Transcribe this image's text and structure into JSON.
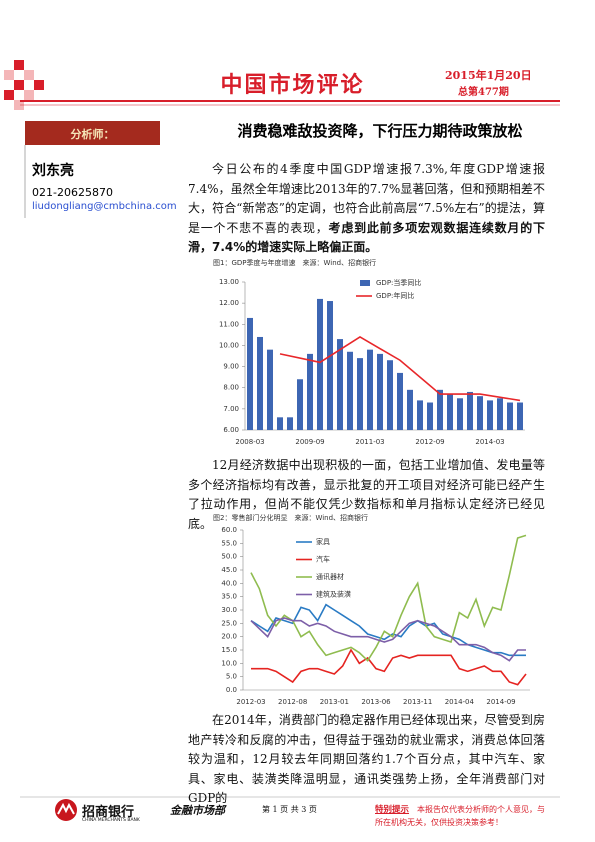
{
  "header": {
    "title": "中国市场评论",
    "date": "2015年1月20日",
    "issue": "总第477期"
  },
  "sidebar": {
    "label": "分析师：",
    "name": "刘东亮",
    "phone": "021-20625870",
    "email": "liudongliang@cmbchina.com"
  },
  "main_title": "消费稳难敌投资降，下行压力期待政策放松",
  "paragraphs": [
    {
      "text": "今日公布的4季度中国GDP增速报7.3%,年度GDP增速报7.4%，虽然全年增速比2013年的7.7%显著回落，但和预期相差不大，符合“新常态”的定调，也符合此前高层“7.5%左右”的提法，算是一个不悲不喜的表现，",
      "bold": "考虑到此前多项宏观数据连续数月的下滑，7.4%的增速实际上略偏正面。"
    },
    {
      "text": "12月经济数据中出现积极的一面，包括工业增加值、发电量等多个经济指标均有改善，显示批复的开工项目对经济可能已经产生了拉动作用，但尚不能仅凭少数指标和单月指标认定经济已经见底。"
    },
    {
      "text": "在2014年，消费部门的稳定器作用已经体现出来，尽管受到房地产转冷和反腐的冲击，但得益于强劲的就业需求，消费总体回落较为温和，12月较去年同期回落约1.7个百分点，其中汽车、家具、家电、装潢类降温明显，通讯类强势上扬，全年消费部门对GDP的"
    }
  ],
  "chart_data": [
    {
      "type": "bar",
      "title": "图1：GDP季度与年度增速　来源：Wind、招商银行",
      "categories": [
        "2008-03",
        null,
        null,
        null,
        null,
        null,
        "2009-09",
        null,
        null,
        null,
        null,
        null,
        "2011-03",
        null,
        null,
        null,
        null,
        null,
        "2012-09",
        null,
        null,
        null,
        null,
        null,
        "2014-03",
        null,
        null,
        null
      ],
      "series": [
        {
          "name": "GDP:当季同比",
          "color": "#3d66b3",
          "type": "bar",
          "values": [
            11.3,
            10.4,
            9.8,
            6.6,
            6.6,
            8.4,
            9.6,
            12.2,
            12.1,
            10.3,
            9.7,
            9.4,
            9.8,
            9.6,
            9.3,
            8.7,
            7.9,
            7.4,
            7.3,
            7.9,
            7.7,
            7.5,
            7.8,
            7.6,
            7.4,
            7.5,
            7.3,
            7.3
          ]
        },
        {
          "name": "GDP:年同比",
          "color": "#e8272a",
          "type": "line",
          "x": [
            3,
            7,
            11,
            15,
            19,
            23,
            27
          ],
          "values": [
            9.6,
            9.2,
            10.4,
            9.3,
            7.7,
            7.7,
            7.4
          ]
        }
      ],
      "ylim": [
        6,
        13
      ],
      "yticks": [
        {
          "value": 6,
          "label": "6.00"
        },
        {
          "value": 7,
          "label": "7.00"
        },
        {
          "value": 8,
          "label": "8.00"
        },
        {
          "value": 9,
          "label": "9.00"
        },
        {
          "value": 10,
          "label": "10.00"
        },
        {
          "value": 11,
          "label": "11.00"
        },
        {
          "value": 12,
          "label": "12.00"
        },
        {
          "value": 13,
          "label": "13.00"
        }
      ]
    },
    {
      "type": "line",
      "title": "图2：零售部门分化明显　来源：Wind、招商银行",
      "categories": [
        "2012-03",
        null,
        null,
        null,
        null,
        "2012-08",
        null,
        null,
        null,
        null,
        "2013-01",
        null,
        null,
        null,
        null,
        "2013-06",
        null,
        null,
        null,
        null,
        "2013-11",
        null,
        null,
        null,
        null,
        "2014-04",
        null,
        null,
        null,
        null,
        "2014-09",
        null,
        null,
        null
      ],
      "series": [
        {
          "name": "家具",
          "color": "#2a7bc4",
          "values": [
            26,
            24,
            22,
            27,
            26,
            25,
            31,
            30,
            26,
            32,
            30,
            28,
            26,
            24,
            21,
            20,
            19,
            21,
            20,
            24,
            26,
            24,
            25,
            21,
            20,
            19,
            17,
            16,
            15,
            14,
            14,
            13,
            13,
            13
          ]
        },
        {
          "name": "汽车",
          "color": "#e52421",
          "values": [
            8,
            8,
            8,
            7,
            5,
            3,
            7,
            8,
            8,
            7,
            6,
            9,
            15,
            10,
            12,
            8,
            7,
            12,
            13,
            12,
            13,
            13,
            13,
            13,
            13,
            8,
            7,
            8,
            9,
            7,
            7,
            3,
            2,
            6
          ]
        },
        {
          "name": "通讯器材",
          "color": "#8fbc4f",
          "values": [
            44,
            38,
            28,
            24,
            28,
            26,
            20,
            22,
            17,
            13,
            14,
            15,
            16,
            14,
            11,
            16,
            22,
            20,
            28,
            35,
            40,
            24,
            20,
            19,
            18,
            29,
            27,
            34,
            24,
            31,
            30,
            43,
            57,
            58
          ]
        },
        {
          "name": "建筑及装潢",
          "color": "#7d5fa8",
          "values": [
            26,
            23,
            20,
            26,
            27,
            26,
            26,
            24,
            25,
            24,
            22,
            21,
            20,
            20,
            20,
            19,
            18,
            19,
            22,
            25,
            26,
            25,
            24,
            22,
            20,
            17,
            17,
            17,
            16,
            14,
            13,
            11,
            15,
            15
          ]
        }
      ],
      "ylim": [
        0,
        60
      ],
      "yticks": [
        {
          "value": 0,
          "label": "0.0"
        },
        {
          "value": 5,
          "label": "5.0"
        },
        {
          "value": 10,
          "label": "10.0"
        },
        {
          "value": 15,
          "label": "15.0"
        },
        {
          "value": 20,
          "label": "20.0"
        },
        {
          "value": 25,
          "label": "25.0"
        },
        {
          "value": 30,
          "label": "30.0"
        },
        {
          "value": 35,
          "label": "35.0"
        },
        {
          "value": 40,
          "label": "40.0"
        },
        {
          "value": 45,
          "label": "45.0"
        },
        {
          "value": 50,
          "label": "50.0"
        },
        {
          "value": 55,
          "label": "55.0"
        },
        {
          "value": 60,
          "label": "60.0"
        }
      ]
    }
  ],
  "footer": {
    "bank": "招商银行",
    "bank_en": "CHINA MERCHANTS BANK",
    "dept": "金融市场部",
    "page": "第 1 页 共 3 页",
    "notice_label": "特别提示",
    "notice": "本报告仅代表分析师的个人意见，与所在机构无关，仅供投资决策参考！"
  }
}
